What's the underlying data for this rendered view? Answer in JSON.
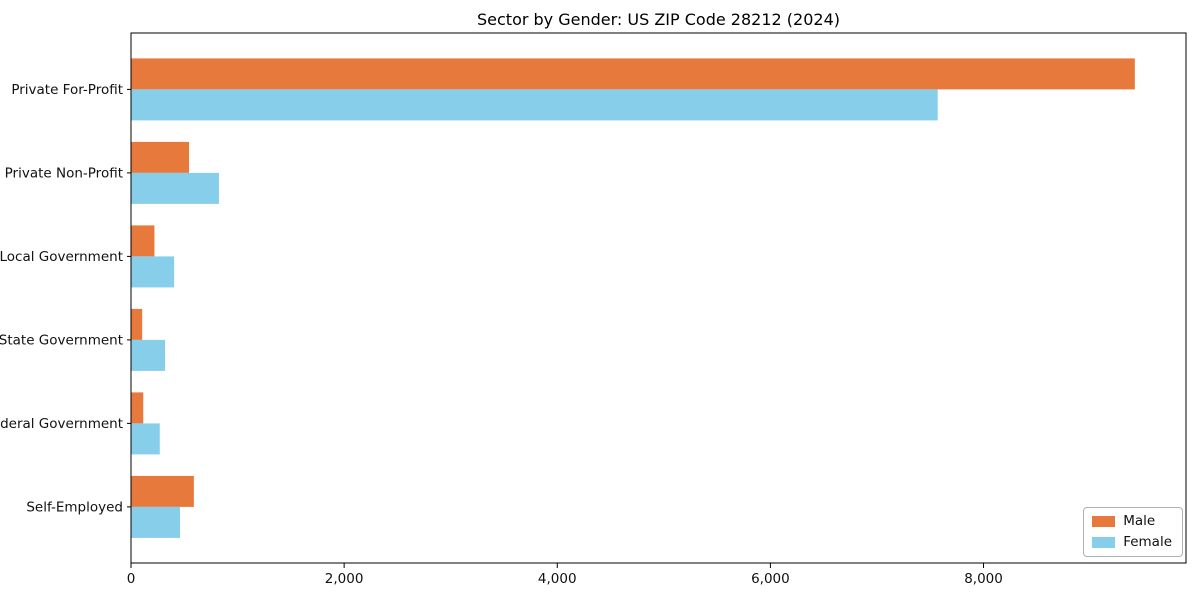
{
  "chart_data": {
    "type": "bar",
    "orientation": "horizontal",
    "title": "Sector by Gender: US ZIP Code 28212 (2024)",
    "categories": [
      "Private For-Profit",
      "Private Non-Profit",
      "Local Government",
      "State Government",
      "Federal Government",
      "Self-Employed"
    ],
    "series": [
      {
        "name": "Male",
        "color": "#e8793d",
        "values": [
          9420,
          545,
          220,
          105,
          115,
          590
        ]
      },
      {
        "name": "Female",
        "color": "#87ceeb",
        "values": [
          7570,
          825,
          405,
          320,
          270,
          460
        ]
      }
    ],
    "xlabel": "",
    "ylabel": "",
    "xlim": [
      0,
      9900
    ],
    "xticks": [
      0,
      2000,
      4000,
      6000,
      8000
    ],
    "xtick_labels": [
      "0",
      "2,000",
      "4,000",
      "6,000",
      "8,000"
    ],
    "grid": false,
    "legend_position": "lower right",
    "frame_color": "#000000",
    "text_color": "#111111",
    "background_color": "#ffffff"
  }
}
